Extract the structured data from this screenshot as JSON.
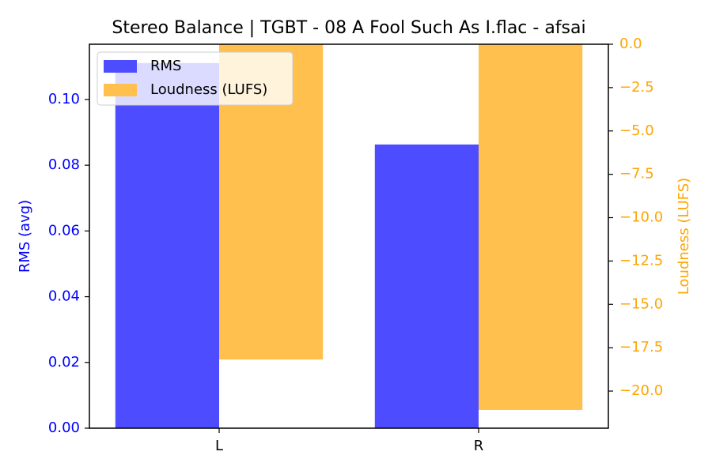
{
  "chart_data": {
    "type": "bar",
    "title": "Stereo Balance | TGBT - 08 A Fool Such As I.flac - afsai",
    "categories": [
      "L",
      "R"
    ],
    "y_label": "RMS (avg)",
    "y2_label": "Loudness (LUFS)",
    "series": [
      {
        "name": "RMS",
        "color": "#4d4dff",
        "values": [
          0.1111,
          0.0863
        ],
        "axis": "y"
      },
      {
        "name": "Loudness (LUFS)",
        "color": "#ffc04d",
        "values": [
          -18.18,
          -21.09
        ],
        "axis": "y2"
      }
    ],
    "y_color": "#0000ff",
    "y2_color": "#ffa500",
    "ylim": [
      0,
      0.1168
    ],
    "yticks": [
      {
        "value": 0,
        "label": "0.00"
      },
      {
        "value": 0.02,
        "label": "0.02"
      },
      {
        "value": 0.04,
        "label": "0.04"
      },
      {
        "value": 0.06,
        "label": "0.06"
      },
      {
        "value": 0.08,
        "label": "0.08"
      },
      {
        "value": 0.1,
        "label": "0.10"
      }
    ],
    "y2lim": [
      -22.14,
      0
    ],
    "y2ticks": [
      {
        "value": 0,
        "label": "0.0"
      },
      {
        "value": -2.5,
        "label": "−2.5"
      },
      {
        "value": -5,
        "label": "−5.0"
      },
      {
        "value": -7.5,
        "label": "−7.5"
      },
      {
        "value": -10,
        "label": "−10.0"
      },
      {
        "value": -12.5,
        "label": "−12.5"
      },
      {
        "value": -15,
        "label": "−15.0"
      },
      {
        "value": -17.5,
        "label": "−17.5"
      },
      {
        "value": -20,
        "label": "−20.0"
      }
    ],
    "legend": "upper left",
    "grid": false
  }
}
